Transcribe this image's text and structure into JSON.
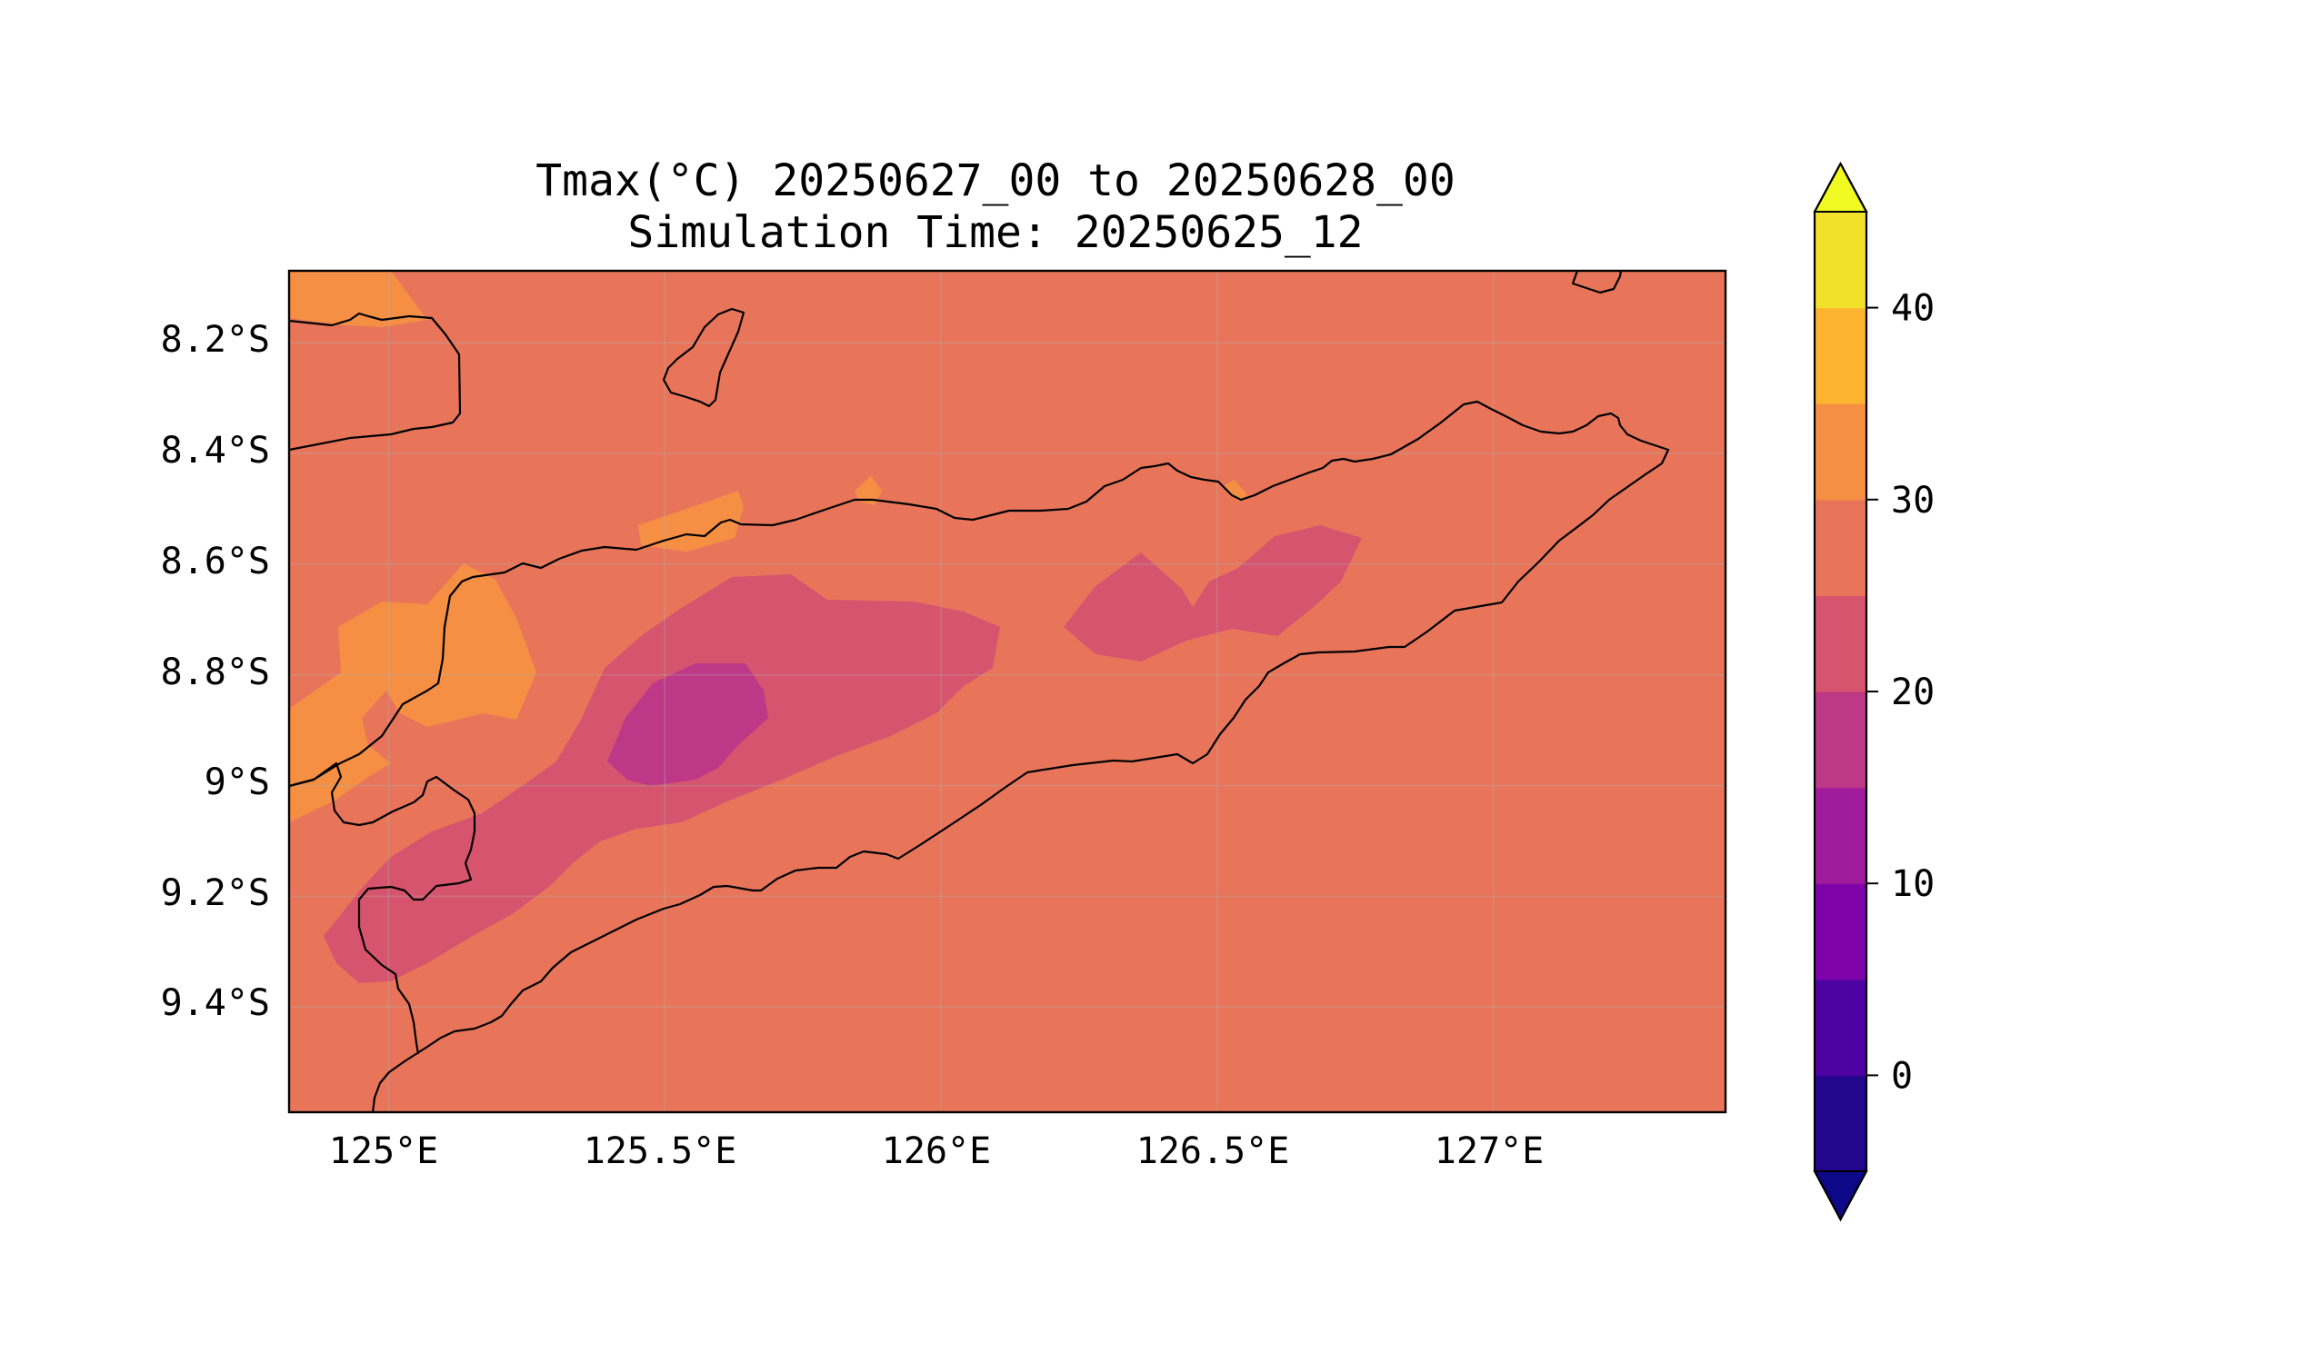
{
  "map": {
    "title_line1": "Tmax(°C) 20250627_00 to 20250628_00",
    "title_line2": "Simulation Time: 20250625_12",
    "lat_ticks": [
      "8.2°S",
      "8.4°S",
      "8.6°S",
      "8.8°S",
      "9°S",
      "9.2°S",
      "9.4°S"
    ],
    "lon_ticks": [
      "125°E",
      "125.5°E",
      "126°E",
      "126.5°E",
      "127°E"
    ],
    "extent": {
      "lon_min": 124.82,
      "lon_max": 127.42,
      "lat_min": -9.59,
      "lat_max": -8.07
    },
    "field_levels": {
      "background": "#e8755a",
      "band_30_35": "#f58f44",
      "band_20_25": "#d6546e",
      "band_15_20": "#bd3886"
    },
    "coastline_color": "#000000",
    "gridlines": true,
    "projection": "PlateCarree"
  },
  "colorbar": {
    "tick_labels": [
      "0",
      "10",
      "20",
      "30",
      "40"
    ],
    "tick_values": [
      0,
      10,
      20,
      30,
      40
    ],
    "range": [
      -5,
      45
    ],
    "extend": "both",
    "bins": [
      {
        "from": -5,
        "to": 0,
        "color": "#23068c"
      },
      {
        "from": 0,
        "to": 5,
        "color": "#4f02a2"
      },
      {
        "from": 5,
        "to": 10,
        "color": "#7e03a8"
      },
      {
        "from": 10,
        "to": 15,
        "color": "#a01b9c"
      },
      {
        "from": 15,
        "to": 20,
        "color": "#bd3886"
      },
      {
        "from": 20,
        "to": 25,
        "color": "#d6546e"
      },
      {
        "from": 25,
        "to": 30,
        "color": "#e8755a"
      },
      {
        "from": 30,
        "to": 35,
        "color": "#f58f44"
      },
      {
        "from": 35,
        "to": 40,
        "color": "#fcb431"
      },
      {
        "from": 40,
        "to": 45,
        "color": "#f2e12a"
      }
    ],
    "under_color": "#0d0887",
    "over_color": "#f0f921"
  }
}
